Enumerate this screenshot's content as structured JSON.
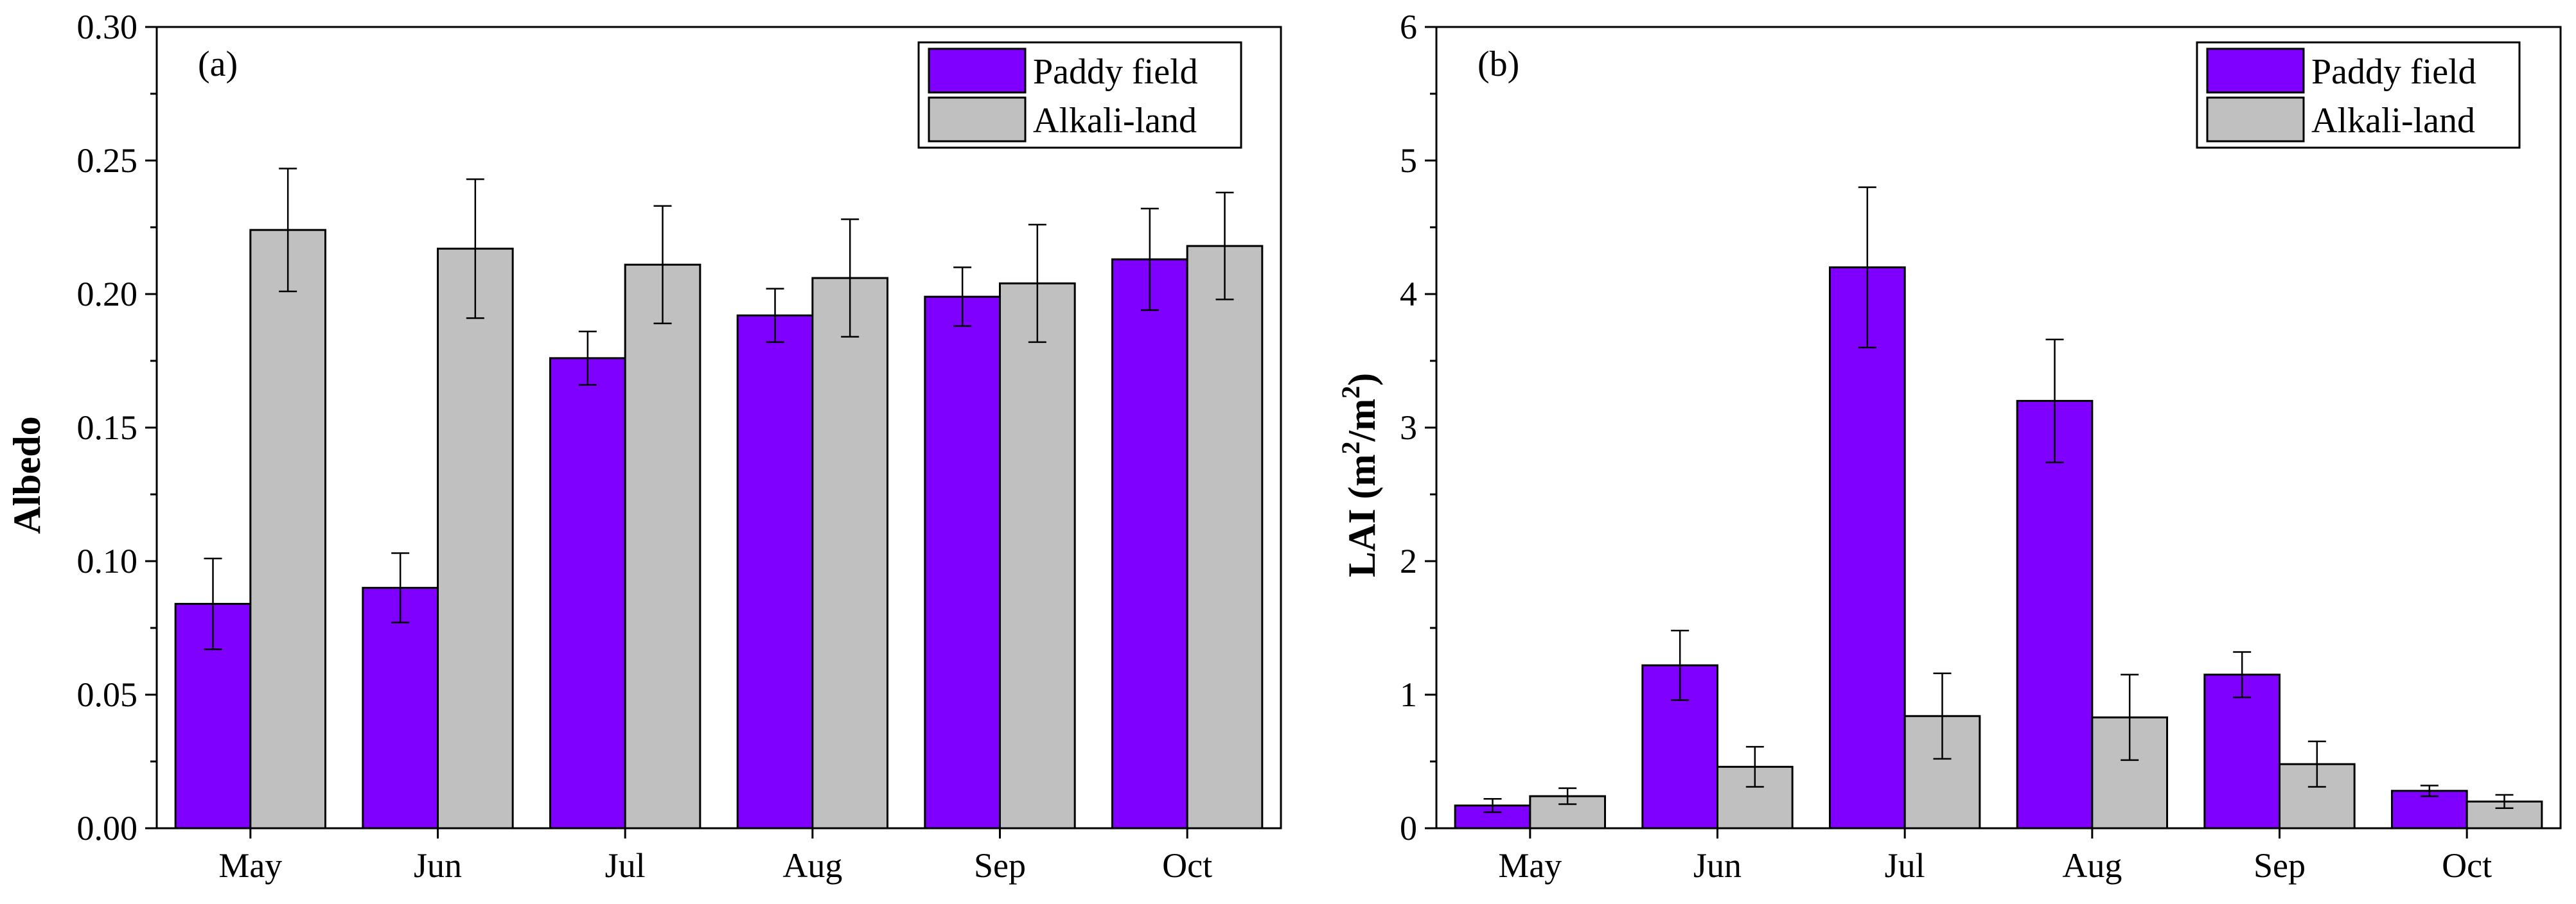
{
  "colors": {
    "paddy": "#7f00ff",
    "alkali": "#c0c0c0",
    "axis": "#000000"
  },
  "chart_data": [
    {
      "type": "bar",
      "panel_label": "(a)",
      "ylabel": "Albedo",
      "ylim": [
        0,
        0.3
      ],
      "yticks": [
        "0.00",
        "0.05",
        "0.10",
        "0.15",
        "0.20",
        "0.25",
        "0.30"
      ],
      "categories": [
        "May",
        "Jun",
        "Jul",
        "Aug",
        "Sep",
        "Oct"
      ],
      "legend": {
        "position": "top-right"
      },
      "series": [
        {
          "name": "Paddy field",
          "values": [
            0.084,
            0.09,
            0.176,
            0.192,
            0.199,
            0.213
          ],
          "errors": [
            0.017,
            0.013,
            0.01,
            0.01,
            0.011,
            0.019
          ]
        },
        {
          "name": "Alkali-land",
          "values": [
            0.224,
            0.217,
            0.211,
            0.206,
            0.204,
            0.218
          ],
          "errors": [
            0.023,
            0.026,
            0.022,
            0.022,
            0.022,
            0.02
          ]
        }
      ]
    },
    {
      "type": "bar",
      "panel_label": "(b)",
      "ylabel_main": "LAI (m",
      "ylabel_sup1": "2",
      "ylabel_mid": "/m",
      "ylabel_sup2": "2",
      "ylabel_end": ")",
      "ylim": [
        0,
        6
      ],
      "yticks": [
        "0",
        "1",
        "2",
        "3",
        "4",
        "5",
        "6"
      ],
      "categories": [
        "May",
        "Jun",
        "Jul",
        "Aug",
        "Sep",
        "Oct"
      ],
      "legend": {
        "position": "top-right"
      },
      "series": [
        {
          "name": "Paddy field",
          "values": [
            0.17,
            1.22,
            4.2,
            3.2,
            1.15,
            0.28
          ],
          "errors": [
            0.05,
            0.26,
            0.6,
            0.46,
            0.17,
            0.04
          ]
        },
        {
          "name": "Alkali-land",
          "values": [
            0.24,
            0.46,
            0.84,
            0.83,
            0.48,
            0.2
          ],
          "errors": [
            0.06,
            0.15,
            0.32,
            0.32,
            0.17,
            0.05
          ]
        }
      ]
    }
  ]
}
